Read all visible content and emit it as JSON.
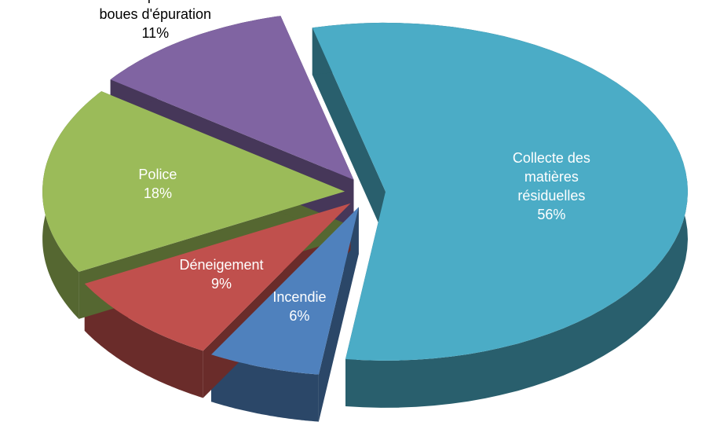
{
  "chart_data": {
    "type": "pie",
    "categories": [
      "Collecte des matières résiduelles",
      "Incendie",
      "Déneigement",
      "Police",
      "Transport des boues d'épuration"
    ],
    "values": [
      56,
      6,
      9,
      18,
      11
    ],
    "value_labels": [
      "56%",
      "6%",
      "9%",
      "18%",
      "11%"
    ],
    "colors": [
      "#4bacc6",
      "#4f81bd",
      "#c0504d",
      "#9bbb59",
      "#8064a2"
    ]
  }
}
